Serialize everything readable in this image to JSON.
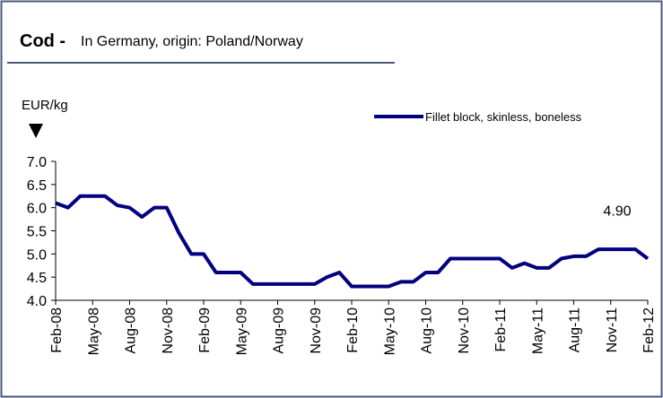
{
  "chart_data": {
    "type": "line",
    "title": "Cod -",
    "subtitle": "In Germany, origin: Poland/Norway",
    "y_label": "EUR/kg",
    "categories": [
      "Feb-08",
      null,
      null,
      "May-08",
      null,
      null,
      "Aug-08",
      null,
      null,
      "Nov-08",
      null,
      null,
      "Feb-09",
      null,
      null,
      "May-09",
      null,
      null,
      "Aug-09",
      null,
      null,
      "Nov-09",
      null,
      null,
      "Feb-10",
      null,
      null,
      "May-10",
      null,
      null,
      "Aug-10",
      null,
      null,
      "Nov-10",
      null,
      null,
      "Feb-11",
      null,
      null,
      "May-11",
      null,
      null,
      "Aug-11",
      null,
      null,
      "Nov-11",
      null,
      null,
      "Feb-12"
    ],
    "series": [
      {
        "name": "Fillet block, skinless, boneless",
        "color": "#000080",
        "values": [
          6.1,
          6.0,
          6.25,
          6.25,
          6.25,
          6.05,
          6.0,
          5.8,
          6.0,
          6.0,
          5.45,
          5.0,
          5.0,
          4.6,
          4.6,
          4.6,
          4.35,
          4.35,
          4.35,
          4.35,
          4.35,
          4.35,
          4.5,
          4.6,
          4.3,
          4.3,
          4.3,
          4.3,
          4.4,
          4.4,
          4.6,
          4.6,
          4.9,
          4.9,
          4.9,
          4.9,
          4.9,
          4.7,
          4.8,
          4.7,
          4.7,
          4.9,
          4.95,
          4.95,
          5.1,
          5.1,
          5.1,
          5.1,
          4.9
        ],
        "value_labels": [
          null,
          null,
          null,
          null,
          null,
          null,
          null,
          null,
          null,
          null,
          null,
          null,
          null,
          null,
          null,
          null,
          null,
          null,
          null,
          null,
          null,
          null,
          null,
          null,
          null,
          null,
          null,
          null,
          null,
          null,
          null,
          null,
          null,
          null,
          null,
          null,
          null,
          null,
          null,
          null,
          null,
          null,
          null,
          null,
          null,
          null,
          null,
          null,
          "4.90"
        ]
      }
    ],
    "ylim": [
      4,
      7
    ],
    "yticks": [
      {
        "value": 4,
        "label": "4.0"
      },
      {
        "value": 4.5,
        "label": "4.5"
      },
      {
        "value": 5,
        "label": "5.0"
      },
      {
        "value": 5.5,
        "label": "5.5"
      },
      {
        "value": 6,
        "label": "6.0"
      },
      {
        "value": 6.5,
        "label": "6.5"
      },
      {
        "value": 7,
        "label": "7.0"
      }
    ],
    "legend": "top-right"
  }
}
